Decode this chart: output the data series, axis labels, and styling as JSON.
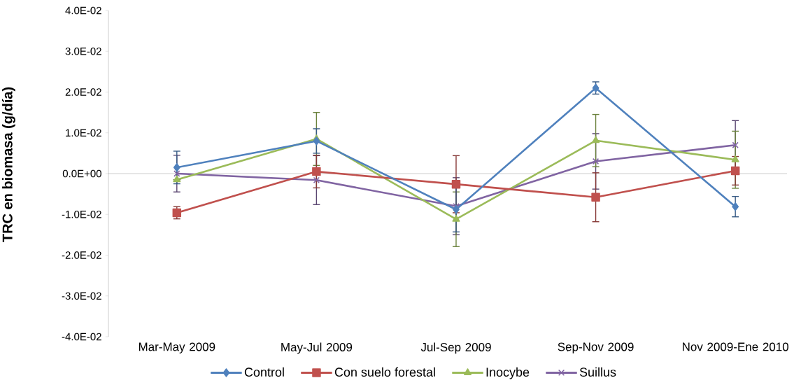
{
  "chart_data": {
    "type": "line",
    "ylabel": "TRC en biomasa (g/día)",
    "categories": [
      "Mar-May 2009",
      "May-Jul 2009",
      "Jul-Sep 2009",
      "Sep-Nov 2009",
      "Nov 2009-Ene 2010"
    ],
    "ylim": [
      -0.04,
      0.04
    ],
    "yticks": [
      {
        "value": -0.04,
        "label": "-4.0E-02"
      },
      {
        "value": -0.03,
        "label": "-3.0E-02"
      },
      {
        "value": -0.02,
        "label": "-2.0E-02"
      },
      {
        "value": -0.01,
        "label": "-1.0E-02"
      },
      {
        "value": 0,
        "label": "0.0E+00"
      },
      {
        "value": 0.01,
        "label": "1.0E-02"
      },
      {
        "value": 0.02,
        "label": "2.0E-02"
      },
      {
        "value": 0.03,
        "label": "3.0E-02"
      },
      {
        "value": 0.04,
        "label": "4.0E-02"
      }
    ],
    "legend": "bottom",
    "series": [
      {
        "name": "Control",
        "color": "#4f81bd",
        "marker": "diamond",
        "values": [
          0.0015,
          0.008,
          -0.0088,
          0.021,
          -0.0081
        ],
        "errors": [
          0.004,
          0.003,
          0.0055,
          0.0015,
          0.0025
        ]
      },
      {
        "name": "Con suelo forestal",
        "color": "#c0504d",
        "marker": "square",
        "values": [
          -0.0096,
          0.0005,
          -0.0026,
          -0.0058,
          0.0007
        ],
        "errors": [
          0.0015,
          0.004,
          0.007,
          0.006,
          0.0035
        ]
      },
      {
        "name": "Inocybe",
        "color": "#9bbb59",
        "marker": "triangle",
        "values": [
          -0.0015,
          0.0085,
          -0.0112,
          0.0081,
          0.0034
        ],
        "errors": [
          null,
          0.0065,
          0.0067,
          0.0064,
          0.007
        ]
      },
      {
        "name": "Suillus",
        "color": "#8064a2",
        "marker": "cross",
        "values": [
          0.0,
          -0.0016,
          -0.008,
          0.003,
          0.007
        ],
        "errors": [
          0.0045,
          0.006,
          0.007,
          0.0068,
          0.006
        ]
      }
    ]
  }
}
